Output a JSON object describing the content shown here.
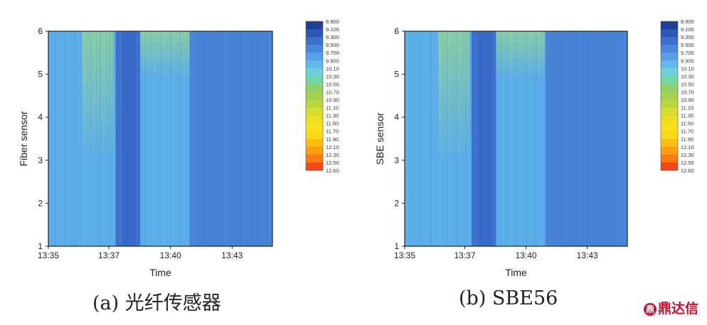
{
  "chart_data": [
    {
      "type": "heatmap",
      "ylabel": "Fiber sensor",
      "xlabel": "Time",
      "x_ticks": [
        "13:35",
        "13:37",
        "13:40",
        "13:43"
      ],
      "y_ticks": [
        "1",
        "2",
        "3",
        "4",
        "5",
        "6"
      ],
      "ylim": [
        1,
        6
      ],
      "colorbar": {
        "levels": [
          "8.900",
          "9.100",
          "9.300",
          "9.500",
          "9.700",
          "9.900",
          "10.10",
          "10.30",
          "10.50",
          "10.70",
          "10.90",
          "11.10",
          "11.30",
          "11.50",
          "11.70",
          "11.90",
          "12.10",
          "12.30",
          "12.50",
          "12.60"
        ],
        "colors": [
          "#1f3f99",
          "#2c57b6",
          "#3b6fcc",
          "#4887dd",
          "#58a0e8",
          "#64b9ec",
          "#6cd0d6",
          "#74d6a0",
          "#8fd06a",
          "#a6d24b",
          "#b9d640",
          "#d6dc30",
          "#ecdf22",
          "#f7e11b",
          "#fbd814",
          "#fcbc12",
          "#fc9d12",
          "#fa7a14",
          "#f4481a"
        ]
      },
      "caption": "(a) 光纤传感器"
    },
    {
      "type": "heatmap",
      "ylabel": "SBE sensor",
      "xlabel": "Time",
      "x_ticks": [
        "13:35",
        "13:37",
        "13:40",
        "13:43"
      ],
      "y_ticks": [
        "1",
        "2",
        "3",
        "4",
        "5",
        "6"
      ],
      "ylim": [
        1,
        6
      ],
      "colorbar": {
        "levels": [
          "8.900",
          "9.100",
          "9.300",
          "9.500",
          "9.700",
          "9.900",
          "10.10",
          "10.30",
          "10.50",
          "10.70",
          "10.90",
          "11.10",
          "11.30",
          "11.50",
          "11.70",
          "11.90",
          "12.10",
          "12.30",
          "12.50",
          "12.60"
        ],
        "colors": [
          "#1f3f99",
          "#2c57b6",
          "#3b6fcc",
          "#4887dd",
          "#58a0e8",
          "#64b9ec",
          "#6cd0d6",
          "#74d6a0",
          "#8fd06a",
          "#a6d24b",
          "#b9d640",
          "#d6dc30",
          "#ecdf22",
          "#f7e11b",
          "#fbd814",
          "#fcbc12",
          "#fc9d12",
          "#fa7a14",
          "#f4481a"
        ]
      },
      "caption": "(b) SBE56"
    }
  ],
  "logo": {
    "text": "鼎达信",
    "mark": "鼎"
  }
}
